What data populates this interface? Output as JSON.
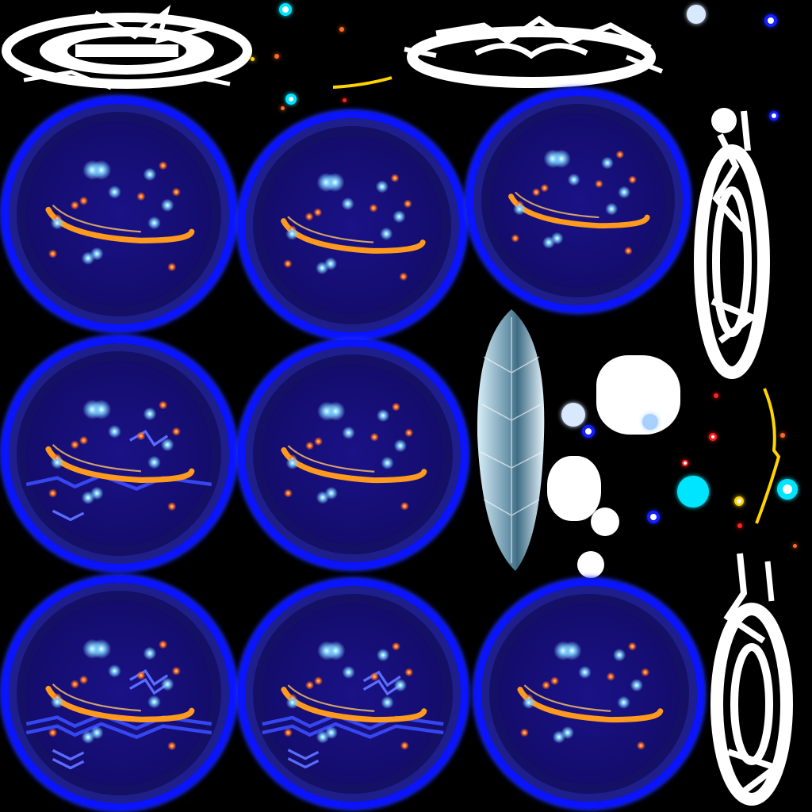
{
  "sheet": {
    "kind": "sprite-sheet",
    "background": "#000000"
  },
  "palette": {
    "ring_blue": "#0a14ff",
    "orb_fill": "#140d6e",
    "swirl_orange": "#ff9a1e",
    "star_blue": "#7fd0ff",
    "spark_orange": "#ff6a20",
    "lightning_blue": "#3a4cff",
    "white": "#ffffff",
    "cyan": "#00e5ff",
    "yellow": "#ffd400",
    "red": "#ff2020",
    "ice": "#bfe0f0"
  },
  "orbs": [
    {
      "name": "orb-frame-1",
      "lightning": 0
    },
    {
      "name": "orb-frame-2",
      "lightning": 0
    },
    {
      "name": "orb-frame-3",
      "lightning": 0
    },
    {
      "name": "orb-frame-4",
      "lightning": 1
    },
    {
      "name": "orb-frame-5",
      "lightning": 0
    },
    {
      "name": "orb-frame-6",
      "lightning": 2
    },
    {
      "name": "orb-frame-7",
      "lightning": 2
    },
    {
      "name": "orb-frame-8",
      "lightning": 0
    }
  ],
  "icons": {
    "magic_circle": "magic-circle-icon",
    "ice_shard": "ice-shard-icon",
    "lightning": "lightning-icon",
    "sparkle": "sparkle-icon"
  }
}
